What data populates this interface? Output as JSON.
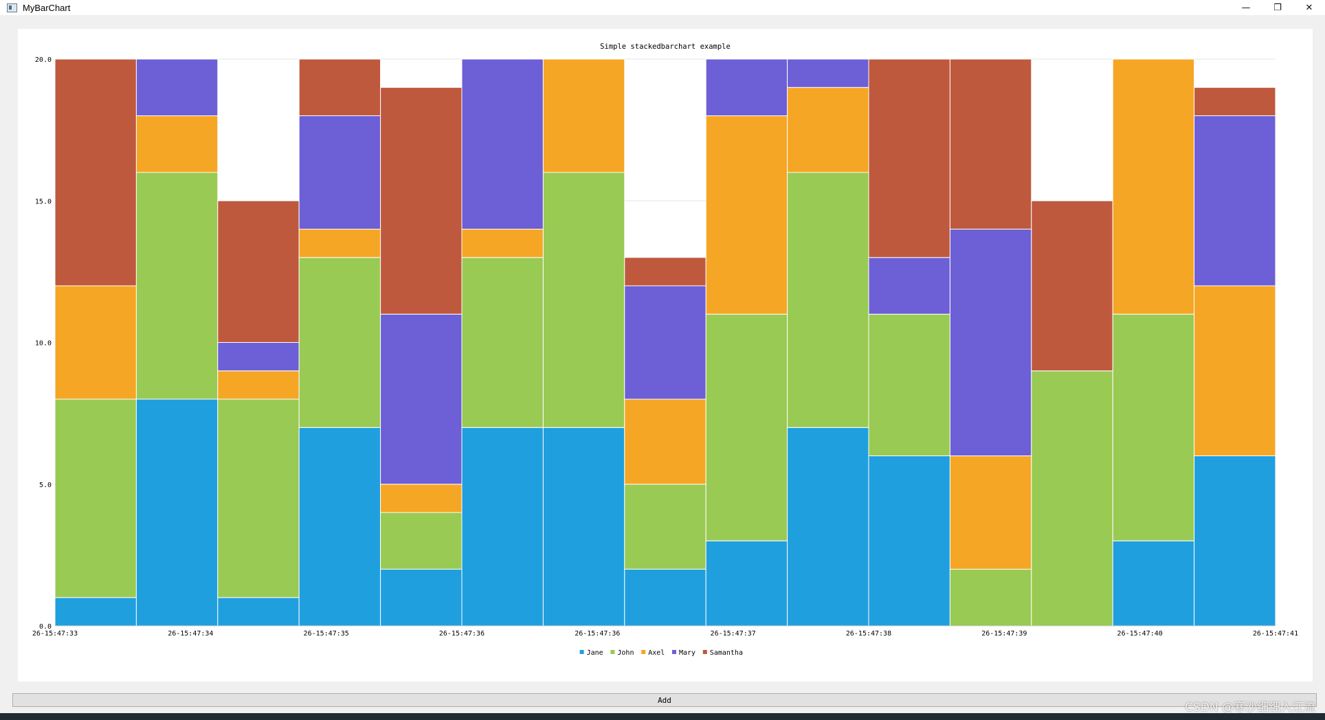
{
  "window": {
    "title": "MyBarChart",
    "minimize_glyph": "—",
    "restore_glyph": "❐",
    "close_glyph": "✕"
  },
  "toolbar": {
    "add_label": "Add"
  },
  "watermark": "CSDN @寒沙细细入江流",
  "colors": {
    "Jane": "#209fdf",
    "John": "#99ca53",
    "Axel": "#f6a625",
    "Mary": "#6d5fd5",
    "Samantha": "#bf593e"
  },
  "chart_data": {
    "type": "bar",
    "stacked": true,
    "title": "Simple stackedbarchart example",
    "xlabel": "",
    "ylabel": "",
    "ylim": [
      0,
      20
    ],
    "yticks": [
      "0.0",
      "5.0",
      "10.0",
      "15.0",
      "20.0"
    ],
    "xticks": [
      "26-15:47:33",
      "26-15:47:34",
      "26-15:47:35",
      "26-15:47:36",
      "26-15:47:36",
      "26-15:47:37",
      "26-15:47:38",
      "26-15:47:39",
      "26-15:47:40",
      "26-15:47:41"
    ],
    "grid": true,
    "legend_position": "bottom",
    "series": [
      {
        "name": "Jane",
        "values": [
          1,
          8,
          1,
          7,
          2,
          7,
          7,
          2,
          3,
          7,
          6,
          0,
          0,
          3,
          6
        ]
      },
      {
        "name": "John",
        "values": [
          7,
          8,
          7,
          6,
          2,
          6,
          9,
          3,
          8,
          9,
          5,
          2,
          9,
          8,
          0
        ]
      },
      {
        "name": "Axel",
        "values": [
          4,
          2,
          1,
          1,
          1,
          1,
          4,
          3,
          7,
          3,
          0,
          4,
          0,
          9,
          6
        ]
      },
      {
        "name": "Mary",
        "values": [
          0,
          2,
          1,
          4,
          6,
          6,
          0,
          4,
          2,
          1,
          2,
          8,
          0,
          0,
          6
        ]
      },
      {
        "name": "Samantha",
        "values": [
          8,
          0,
          5,
          2,
          8,
          0,
          0,
          1,
          0,
          0,
          7,
          6,
          6,
          0,
          1
        ]
      }
    ]
  }
}
